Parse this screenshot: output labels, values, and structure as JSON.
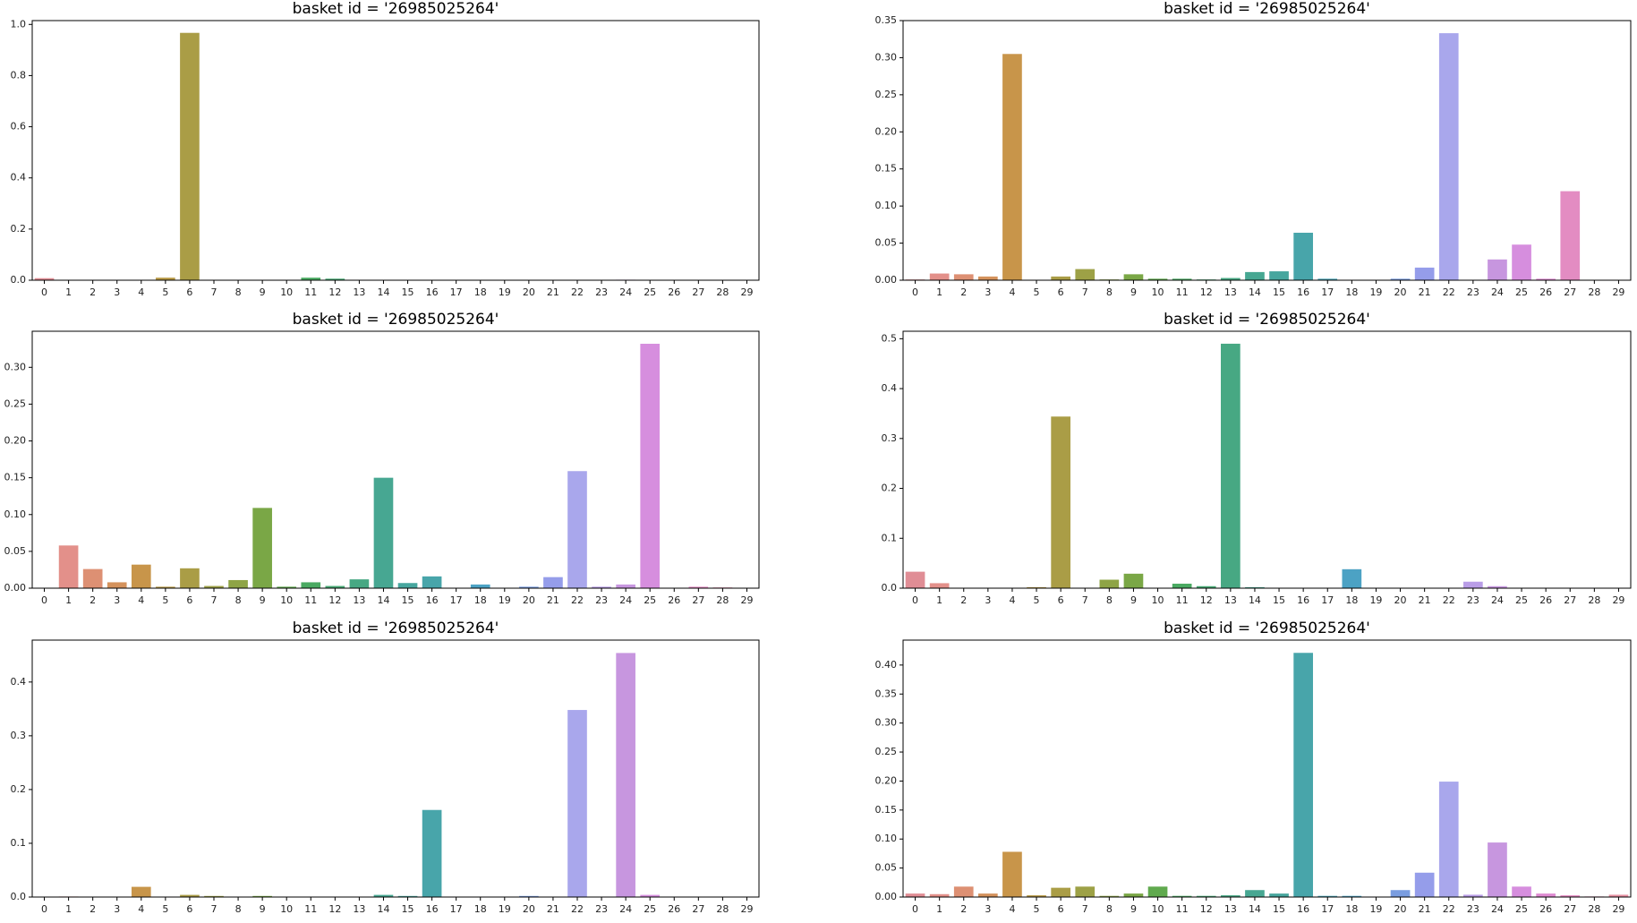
{
  "chart_data": [
    {
      "type": "bar",
      "title": "basket id = '26985025264'",
      "categories": [
        0,
        1,
        2,
        3,
        4,
        5,
        6,
        7,
        8,
        9,
        10,
        11,
        12,
        13,
        14,
        15,
        16,
        17,
        18,
        19,
        20,
        21,
        22,
        23,
        24,
        25,
        26,
        27,
        28,
        29
      ],
      "values": [
        0.008,
        0.0005,
        0.0005,
        0.0005,
        0.0005,
        0.01,
        0.967,
        0.0005,
        0.0005,
        0.0005,
        0.0005,
        0.01,
        0.006,
        0.0005,
        0.0005,
        0.0005,
        0.0005,
        0.0005,
        0.0005,
        0.0005,
        0.0005,
        0.0005,
        0.0005,
        0.0005,
        0.002,
        0.0005,
        0.0005,
        0.0005,
        0.0005,
        0.0005
      ],
      "colors": [
        "#e08d95",
        "#e3908a",
        "#dd9073",
        "#d4925c",
        "#c8954a",
        "#b99a46",
        "#aa9d46",
        "#9da146",
        "#8ea446",
        "#7aa746",
        "#60aa4e",
        "#4aaa62",
        "#47a973",
        "#47a883",
        "#47a792",
        "#47a69e",
        "#48a5aa",
        "#49a4b6",
        "#4ca2c4",
        "#599fd2",
        "#7a9de0",
        "#959dea",
        "#a9a7ec",
        "#b99de7",
        "#c796df",
        "#d68ede",
        "#df8bd2",
        "#e38cc2",
        "#e68eb2",
        "#e791a3"
      ],
      "ylim": [
        0,
        1.015
      ],
      "yticks": [
        {
          "value": 0,
          "label": "0.0"
        },
        {
          "value": 0.2,
          "label": "0.2"
        },
        {
          "value": 0.4,
          "label": "0.4"
        },
        {
          "value": 0.6,
          "label": "0.6"
        },
        {
          "value": 0.8,
          "label": "0.8"
        },
        {
          "value": 1.0,
          "label": "1.0"
        }
      ]
    },
    {
      "type": "bar",
      "title": "basket id = '26985025264'",
      "categories": [
        0,
        1,
        2,
        3,
        4,
        5,
        6,
        7,
        8,
        9,
        10,
        11,
        12,
        13,
        14,
        15,
        16,
        17,
        18,
        19,
        20,
        21,
        22,
        23,
        24,
        25,
        26,
        27,
        28,
        29
      ],
      "values": [
        0.001,
        0.009,
        0.008,
        0.005,
        0.305,
        0.0005,
        0.005,
        0.015,
        0.001,
        0.008,
        0.002,
        0.002,
        0.001,
        0.003,
        0.011,
        0.012,
        0.064,
        0.002,
        0.0005,
        0.0005,
        0.002,
        0.017,
        0.333,
        0.0005,
        0.028,
        0.048,
        0.002,
        0.12,
        0.0005,
        0.0005
      ],
      "colors": [
        "#e08d95",
        "#e3908a",
        "#dd9073",
        "#d4925c",
        "#c8954a",
        "#b99a46",
        "#aa9d46",
        "#9da146",
        "#8ea446",
        "#7aa746",
        "#60aa4e",
        "#4aaa62",
        "#47a973",
        "#47a883",
        "#47a792",
        "#47a69e",
        "#48a5aa",
        "#49a4b6",
        "#4ca2c4",
        "#599fd2",
        "#7a9de0",
        "#959dea",
        "#a9a7ec",
        "#b99de7",
        "#c796df",
        "#d68ede",
        "#df8bd2",
        "#e38cc2",
        "#e68eb2",
        "#e791a3"
      ],
      "ylim": [
        0,
        0.35
      ],
      "yticks": [
        {
          "value": 0,
          "label": "0.00"
        },
        {
          "value": 0.05,
          "label": "0.05"
        },
        {
          "value": 0.1,
          "label": "0.10"
        },
        {
          "value": 0.15,
          "label": "0.15"
        },
        {
          "value": 0.2,
          "label": "0.20"
        },
        {
          "value": 0.25,
          "label": "0.25"
        },
        {
          "value": 0.3,
          "label": "0.30"
        },
        {
          "value": 0.35,
          "label": "0.35"
        }
      ]
    },
    {
      "type": "bar",
      "title": "basket id = '26985025264'",
      "categories": [
        0,
        1,
        2,
        3,
        4,
        5,
        6,
        7,
        8,
        9,
        10,
        11,
        12,
        13,
        14,
        15,
        16,
        17,
        18,
        19,
        20,
        21,
        22,
        23,
        24,
        25,
        26,
        27,
        28,
        29
      ],
      "values": [
        0.0005,
        0.058,
        0.026,
        0.008,
        0.032,
        0.002,
        0.027,
        0.003,
        0.011,
        0.109,
        0.002,
        0.008,
        0.003,
        0.012,
        0.15,
        0.007,
        0.016,
        0.0005,
        0.005,
        0.0005,
        0.002,
        0.015,
        0.159,
        0.002,
        0.005,
        0.332,
        0.0005,
        0.002,
        0.001,
        0.0005
      ],
      "colors": [
        "#e08d95",
        "#e3908a",
        "#dd9073",
        "#d4925c",
        "#c8954a",
        "#b99a46",
        "#aa9d46",
        "#9da146",
        "#8ea446",
        "#7aa746",
        "#60aa4e",
        "#4aaa62",
        "#47a973",
        "#47a883",
        "#47a792",
        "#47a69e",
        "#48a5aa",
        "#49a4b6",
        "#4ca2c4",
        "#599fd2",
        "#7a9de0",
        "#959dea",
        "#a9a7ec",
        "#b99de7",
        "#c796df",
        "#d68ede",
        "#df8bd2",
        "#e38cc2",
        "#e68eb2",
        "#e791a3"
      ],
      "ylim": [
        0,
        0.349
      ],
      "yticks": [
        {
          "value": 0,
          "label": "0.00"
        },
        {
          "value": 0.05,
          "label": "0.05"
        },
        {
          "value": 0.1,
          "label": "0.10"
        },
        {
          "value": 0.15,
          "label": "0.15"
        },
        {
          "value": 0.2,
          "label": "0.20"
        },
        {
          "value": 0.25,
          "label": "0.25"
        },
        {
          "value": 0.3,
          "label": "0.30"
        }
      ]
    },
    {
      "type": "bar",
      "title": "basket id = '26985025264'",
      "categories": [
        0,
        1,
        2,
        3,
        4,
        5,
        6,
        7,
        8,
        9,
        10,
        11,
        12,
        13,
        14,
        15,
        16,
        17,
        18,
        19,
        20,
        21,
        22,
        23,
        24,
        25,
        26,
        27,
        28,
        29
      ],
      "values": [
        0.033,
        0.01,
        0.0005,
        0.0005,
        0.0005,
        0.002,
        0.344,
        0.0005,
        0.017,
        0.029,
        0.0005,
        0.009,
        0.004,
        0.49,
        0.002,
        0.0005,
        0.0005,
        0.0005,
        0.038,
        0.0005,
        0.0005,
        0.0005,
        0.0005,
        0.013,
        0.004,
        0.0005,
        0.0005,
        0.0005,
        0.0005,
        0.0005
      ],
      "colors": [
        "#e08d95",
        "#e3908a",
        "#dd9073",
        "#d4925c",
        "#c8954a",
        "#b99a46",
        "#aa9d46",
        "#9da146",
        "#8ea446",
        "#7aa746",
        "#60aa4e",
        "#4aaa62",
        "#47a973",
        "#47a883",
        "#47a792",
        "#47a69e",
        "#48a5aa",
        "#49a4b6",
        "#4ca2c4",
        "#599fd2",
        "#7a9de0",
        "#959dea",
        "#a9a7ec",
        "#b99de7",
        "#c796df",
        "#d68ede",
        "#df8bd2",
        "#e38cc2",
        "#e68eb2",
        "#e791a3"
      ],
      "ylim": [
        0,
        0.515
      ],
      "yticks": [
        {
          "value": 0,
          "label": "0.0"
        },
        {
          "value": 0.1,
          "label": "0.1"
        },
        {
          "value": 0.2,
          "label": "0.2"
        },
        {
          "value": 0.3,
          "label": "0.3"
        },
        {
          "value": 0.4,
          "label": "0.4"
        },
        {
          "value": 0.5,
          "label": "0.5"
        }
      ]
    },
    {
      "type": "bar",
      "title": "basket id = '26985025264'",
      "categories": [
        0,
        1,
        2,
        3,
        4,
        5,
        6,
        7,
        8,
        9,
        10,
        11,
        12,
        13,
        14,
        15,
        16,
        17,
        18,
        19,
        20,
        21,
        22,
        23,
        24,
        25,
        26,
        27,
        28,
        29
      ],
      "values": [
        0.0005,
        0.001,
        0.0005,
        0.0005,
        0.019,
        0.0005,
        0.004,
        0.002,
        0.0005,
        0.002,
        0.0005,
        0.0005,
        0.0005,
        0.0005,
        0.004,
        0.002,
        0.162,
        0.0005,
        0.0005,
        0.0005,
        0.002,
        0.0005,
        0.348,
        0.0005,
        0.454,
        0.004,
        0.0005,
        0.0005,
        0.0005,
        0.0005
      ],
      "colors": [
        "#e08d95",
        "#e3908a",
        "#dd9073",
        "#d4925c",
        "#c8954a",
        "#b99a46",
        "#aa9d46",
        "#9da146",
        "#8ea446",
        "#7aa746",
        "#60aa4e",
        "#4aaa62",
        "#47a973",
        "#47a883",
        "#47a792",
        "#47a69e",
        "#48a5aa",
        "#49a4b6",
        "#4ca2c4",
        "#599fd2",
        "#7a9de0",
        "#959dea",
        "#a9a7ec",
        "#b99de7",
        "#c796df",
        "#d68ede",
        "#df8bd2",
        "#e38cc2",
        "#e68eb2",
        "#e791a3"
      ],
      "ylim": [
        0,
        0.478
      ],
      "yticks": [
        {
          "value": 0,
          "label": "0.0"
        },
        {
          "value": 0.1,
          "label": "0.1"
        },
        {
          "value": 0.2,
          "label": "0.2"
        },
        {
          "value": 0.3,
          "label": "0.3"
        },
        {
          "value": 0.4,
          "label": "0.4"
        }
      ]
    },
    {
      "type": "bar",
      "title": "basket id = '26985025264'",
      "categories": [
        0,
        1,
        2,
        3,
        4,
        5,
        6,
        7,
        8,
        9,
        10,
        11,
        12,
        13,
        14,
        15,
        16,
        17,
        18,
        19,
        20,
        21,
        22,
        23,
        24,
        25,
        26,
        27,
        28,
        29
      ],
      "values": [
        0.006,
        0.005,
        0.018,
        0.006,
        0.078,
        0.003,
        0.016,
        0.018,
        0.002,
        0.006,
        0.018,
        0.002,
        0.002,
        0.003,
        0.012,
        0.006,
        0.421,
        0.002,
        0.002,
        0.0005,
        0.012,
        0.042,
        0.199,
        0.004,
        0.094,
        0.018,
        0.006,
        0.003,
        0.001,
        0.004
      ],
      "colors": [
        "#e08d95",
        "#e3908a",
        "#dd9073",
        "#d4925c",
        "#c8954a",
        "#b99a46",
        "#aa9d46",
        "#9da146",
        "#8ea446",
        "#7aa746",
        "#60aa4e",
        "#4aaa62",
        "#47a973",
        "#47a883",
        "#47a792",
        "#47a69e",
        "#48a5aa",
        "#49a4b6",
        "#4ca2c4",
        "#599fd2",
        "#7a9de0",
        "#959dea",
        "#a9a7ec",
        "#b99de7",
        "#c796df",
        "#d68ede",
        "#df8bd2",
        "#e38cc2",
        "#e68eb2",
        "#e791a3"
      ],
      "ylim": [
        0,
        0.443
      ],
      "yticks": [
        {
          "value": 0,
          "label": "0.00"
        },
        {
          "value": 0.05,
          "label": "0.05"
        },
        {
          "value": 0.1,
          "label": "0.10"
        },
        {
          "value": 0.15,
          "label": "0.15"
        },
        {
          "value": 0.2,
          "label": "0.20"
        },
        {
          "value": 0.25,
          "label": "0.25"
        },
        {
          "value": 0.3,
          "label": "0.30"
        },
        {
          "value": 0.35,
          "label": "0.35"
        },
        {
          "value": 0.4,
          "label": "0.40"
        }
      ]
    }
  ]
}
